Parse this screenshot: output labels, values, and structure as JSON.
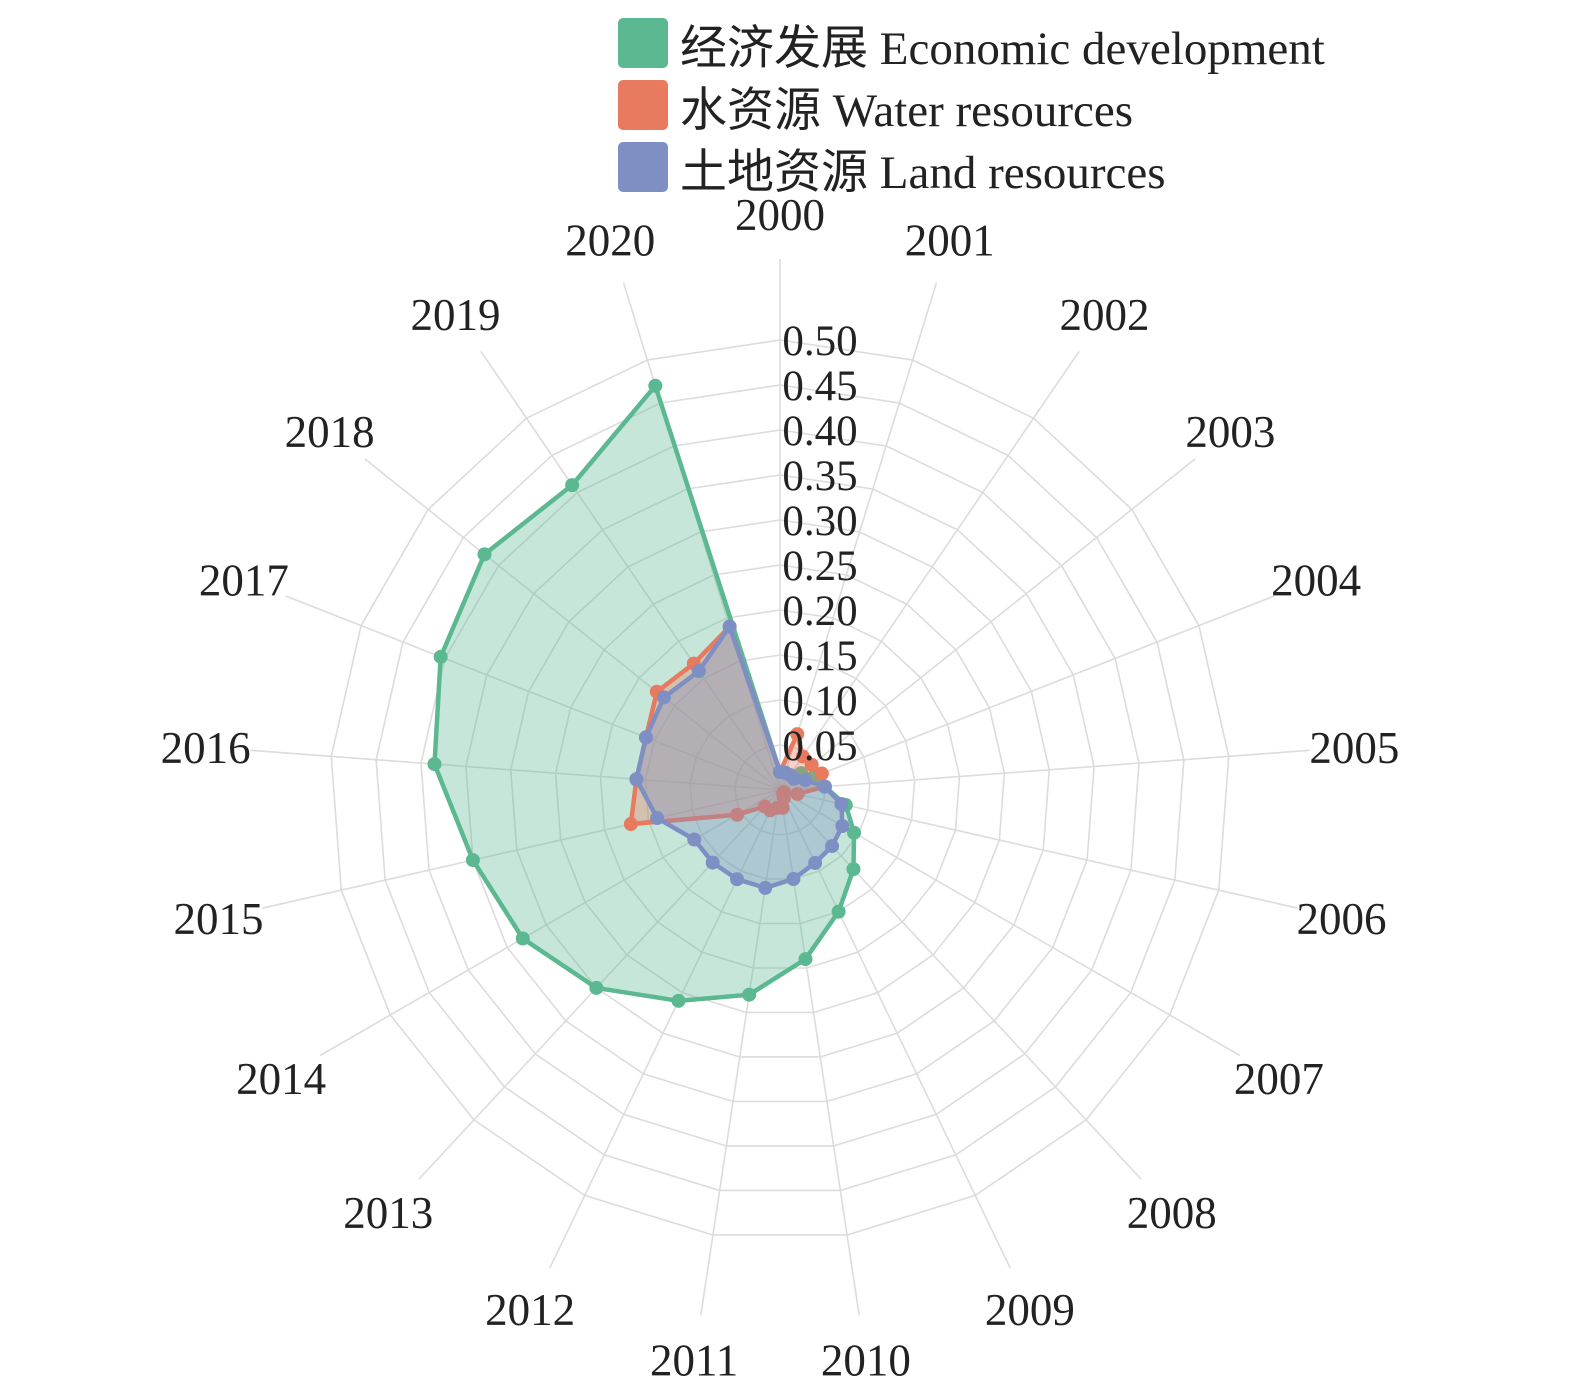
{
  "chart_data": {
    "type": "radar",
    "categories": [
      "2000",
      "2001",
      "2002",
      "2003",
      "2004",
      "2005",
      "2006",
      "2007",
      "2008",
      "2009",
      "2010",
      "2011",
      "2012",
      "2013",
      "2014",
      "2015",
      "2016",
      "2017",
      "2018",
      "2019",
      "2020"
    ],
    "radial_ticks": [
      "0.05",
      "0.10",
      "0.15",
      "0.20",
      "0.25",
      "0.30",
      "0.35",
      "0.40",
      "0.45",
      "0.50"
    ],
    "rlim": [
      0,
      0.5
    ],
    "grid": true,
    "legend_position": "top-right",
    "series": [
      {
        "name": "经济发展 Economic development",
        "color": "#5bb891",
        "values": [
          0.02,
          0.02,
          0.02,
          0.03,
          0.04,
          0.05,
          0.075,
          0.095,
          0.12,
          0.15,
          0.19,
          0.23,
          0.26,
          0.3,
          0.33,
          0.35,
          0.385,
          0.405,
          0.42,
          0.41,
          0.47
        ]
      },
      {
        "name": "水资源 Water resources",
        "color": "#e87a5f",
        "values": [
          0.02,
          0.065,
          0.045,
          0.045,
          0.05,
          0.05,
          0.02,
          0.005,
          0.005,
          0.01,
          0.02,
          0.02,
          0.025,
          0.025,
          0.055,
          0.17,
          0.16,
          0.16,
          0.175,
          0.17,
          0.19
        ]
      },
      {
        "name": "土地资源 Land resources",
        "color": "#7e8fc4",
        "values": [
          0.02,
          0.02,
          0.02,
          0.02,
          0.03,
          0.05,
          0.07,
          0.08,
          0.085,
          0.09,
          0.1,
          0.11,
          0.11,
          0.11,
          0.11,
          0.14,
          0.16,
          0.16,
          0.165,
          0.16,
          0.19
        ]
      }
    ]
  }
}
